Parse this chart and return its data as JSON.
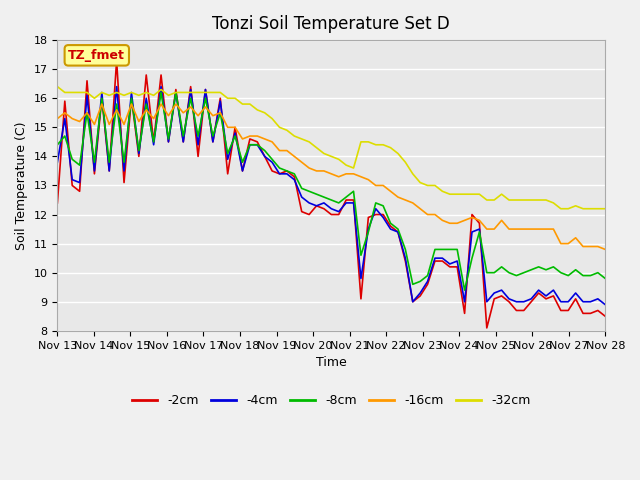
{
  "title": "Tonzi Soil Temperature Set D",
  "xlabel": "Time",
  "ylabel": "Soil Temperature (C)",
  "ylim": [
    8.0,
    18.0
  ],
  "yticks": [
    8.0,
    9.0,
    10.0,
    11.0,
    12.0,
    13.0,
    14.0,
    15.0,
    16.0,
    17.0,
    18.0
  ],
  "xtick_labels": [
    "Nov 13",
    "Nov 14",
    "Nov 15",
    "Nov 16",
    "Nov 17",
    "Nov 18",
    "Nov 19",
    "Nov 20",
    "Nov 21",
    "Nov 22",
    "Nov 23",
    "Nov 24",
    "Nov 25",
    "Nov 26",
    "Nov 27",
    "Nov 28"
  ],
  "label_box_text": "TZ_fmet",
  "label_box_color": "#ffff99",
  "label_box_edge": "#cc9900",
  "label_text_color": "#cc0000",
  "colors": {
    "-2cm": "#dd0000",
    "-4cm": "#0000dd",
    "-8cm": "#00bb00",
    "-16cm": "#ff9900",
    "-32cm": "#dddd00"
  },
  "fig_bg_color": "#f0f0f0",
  "plot_bg_color": "#e8e8e8",
  "grid_color": "#ffffff",
  "series": {
    "-2cm": [
      12.4,
      15.9,
      13.0,
      12.8,
      16.6,
      13.4,
      16.0,
      13.5,
      17.3,
      13.1,
      16.0,
      14.0,
      16.8,
      14.5,
      16.8,
      14.5,
      16.3,
      14.5,
      16.4,
      14.0,
      16.3,
      14.5,
      16.0,
      13.4,
      15.0,
      13.5,
      14.6,
      14.5,
      14.0,
      13.5,
      13.4,
      13.5,
      13.3,
      12.1,
      12.0,
      12.3,
      12.2,
      12.0,
      12.0,
      12.5,
      12.5,
      9.1,
      11.9,
      12.0,
      12.0,
      11.6,
      11.4,
      10.4,
      9.0,
      9.2,
      9.6,
      10.4,
      10.4,
      10.2,
      10.2,
      8.6,
      12.0,
      11.7,
      8.1,
      9.1,
      9.2,
      9.0,
      8.7,
      8.7,
      9.0,
      9.3,
      9.1,
      9.2,
      8.7,
      8.7,
      9.1,
      8.6,
      8.6,
      8.7,
      8.5
    ],
    "-4cm": [
      13.8,
      15.3,
      13.2,
      13.1,
      16.1,
      13.5,
      16.2,
      13.5,
      16.4,
      13.5,
      16.2,
      14.1,
      16.0,
      14.4,
      16.4,
      14.5,
      16.2,
      14.5,
      16.3,
      14.4,
      16.3,
      14.5,
      15.9,
      13.9,
      14.8,
      13.5,
      14.4,
      14.4,
      14.0,
      13.8,
      13.4,
      13.4,
      13.2,
      12.6,
      12.4,
      12.3,
      12.4,
      12.2,
      12.1,
      12.4,
      12.4,
      9.8,
      11.5,
      12.2,
      11.9,
      11.5,
      11.4,
      10.5,
      9.0,
      9.3,
      9.7,
      10.5,
      10.5,
      10.3,
      10.4,
      9.0,
      11.4,
      11.5,
      9.0,
      9.3,
      9.4,
      9.1,
      9.0,
      9.0,
      9.1,
      9.4,
      9.2,
      9.4,
      9.0,
      9.0,
      9.3,
      9.0,
      9.0,
      9.1,
      8.9
    ],
    "-8cm": [
      14.4,
      14.7,
      13.9,
      13.7,
      15.5,
      13.8,
      16.0,
      13.8,
      15.8,
      13.8,
      16.0,
      14.2,
      15.8,
      14.5,
      16.2,
      14.6,
      16.2,
      14.7,
      16.0,
      14.7,
      16.0,
      14.7,
      15.5,
      14.1,
      14.7,
      13.8,
      14.4,
      14.4,
      14.2,
      13.9,
      13.6,
      13.5,
      13.4,
      12.9,
      12.8,
      12.7,
      12.6,
      12.5,
      12.4,
      12.6,
      12.8,
      10.6,
      11.4,
      12.4,
      12.3,
      11.7,
      11.5,
      10.8,
      9.6,
      9.7,
      9.9,
      10.8,
      10.8,
      10.8,
      10.8,
      9.4,
      10.5,
      11.4,
      10.0,
      10.0,
      10.2,
      10.0,
      9.9,
      10.0,
      10.1,
      10.2,
      10.1,
      10.2,
      10.0,
      9.9,
      10.1,
      9.9,
      9.9,
      10.0,
      9.8
    ],
    "-16cm": [
      15.3,
      15.5,
      15.3,
      15.2,
      15.5,
      15.1,
      15.8,
      15.1,
      15.6,
      15.1,
      15.8,
      15.2,
      15.6,
      15.3,
      15.8,
      15.4,
      15.8,
      15.5,
      15.7,
      15.4,
      15.7,
      15.4,
      15.5,
      15.0,
      15.0,
      14.6,
      14.7,
      14.7,
      14.6,
      14.5,
      14.2,
      14.2,
      14.0,
      13.8,
      13.6,
      13.5,
      13.5,
      13.4,
      13.3,
      13.4,
      13.4,
      13.3,
      13.2,
      13.0,
      13.0,
      12.8,
      12.6,
      12.5,
      12.4,
      12.2,
      12.0,
      12.0,
      11.8,
      11.7,
      11.7,
      11.8,
      11.9,
      11.8,
      11.5,
      11.5,
      11.8,
      11.5,
      11.5,
      11.5,
      11.5,
      11.5,
      11.5,
      11.5,
      11.0,
      11.0,
      11.2,
      10.9,
      10.9,
      10.9,
      10.8
    ],
    "-32cm": [
      16.4,
      16.2,
      16.2,
      16.2,
      16.2,
      16.0,
      16.2,
      16.1,
      16.2,
      16.1,
      16.2,
      16.1,
      16.2,
      16.1,
      16.3,
      16.1,
      16.2,
      16.2,
      16.2,
      16.2,
      16.2,
      16.2,
      16.2,
      16.0,
      16.0,
      15.8,
      15.8,
      15.6,
      15.5,
      15.3,
      15.0,
      14.9,
      14.7,
      14.6,
      14.5,
      14.3,
      14.1,
      14.0,
      13.9,
      13.7,
      13.6,
      14.5,
      14.5,
      14.4,
      14.4,
      14.3,
      14.1,
      13.8,
      13.4,
      13.1,
      13.0,
      13.0,
      12.8,
      12.7,
      12.7,
      12.7,
      12.7,
      12.7,
      12.5,
      12.5,
      12.7,
      12.5,
      12.5,
      12.5,
      12.5,
      12.5,
      12.5,
      12.4,
      12.2,
      12.2,
      12.3,
      12.2,
      12.2,
      12.2,
      12.2
    ]
  }
}
